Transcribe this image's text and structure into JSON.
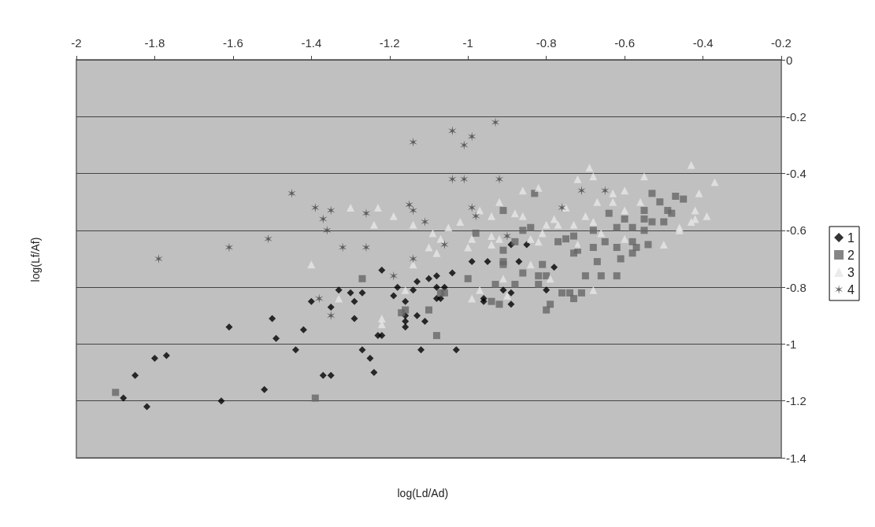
{
  "chart_data": {
    "type": "scatter",
    "xlabel": "log(Ld/Ad)",
    "ylabel": "log(Lf/Af)",
    "xlim": [
      -2,
      -0.2
    ],
    "ylim": [
      -1.4,
      0
    ],
    "xticks": [
      -2,
      -1.8,
      -1.6,
      -1.4,
      -1.2,
      -1,
      -0.8,
      -0.6,
      -0.4,
      -0.2
    ],
    "yticks": [
      0,
      -0.2,
      -0.4,
      -0.6,
      -0.8,
      -1,
      -1.2,
      -1.4
    ],
    "grid": "y",
    "legend": "right",
    "series": [
      {
        "name": "1",
        "color": "#000000",
        "marker": "diamond",
        "x": [
          -1.4,
          -1.5,
          -1.42,
          -1.49,
          -1.61,
          -1.44,
          -1.8,
          -1.77,
          -1.85,
          -1.88,
          -1.82,
          -1.63,
          -1.52,
          -1.37,
          -1.35,
          -1.22,
          -1.33,
          -1.3,
          -1.27,
          -1.29,
          -1.35,
          -1.29,
          -1.23,
          -1.22,
          -1.27,
          -1.25,
          -1.24,
          -1.12,
          -1.03,
          -1.18,
          -1.19,
          -1.16,
          -1.16,
          -1.16,
          -1.16,
          -1.13,
          -1.11,
          -1.14,
          -1.13,
          -1.1,
          -1.08,
          -1.04,
          -1.08,
          -1.06,
          -1.08,
          -1.07,
          -1.06,
          -0.99,
          -0.95,
          -0.87,
          -0.78,
          -0.96,
          -0.96,
          -0.91,
          -0.89,
          -0.89,
          -0.8,
          -0.89,
          -0.85
        ],
        "values": [
          -0.85,
          -0.91,
          -0.95,
          -0.98,
          -0.94,
          -1.02,
          -1.05,
          -1.04,
          -1.11,
          -1.19,
          -1.22,
          -1.2,
          -1.16,
          -1.11,
          -1.11,
          -0.74,
          -0.81,
          -0.82,
          -0.82,
          -0.85,
          -0.87,
          -0.91,
          -0.97,
          -0.97,
          -1.02,
          -1.05,
          -1.1,
          -1.02,
          -1.02,
          -0.8,
          -0.83,
          -0.85,
          -0.9,
          -0.92,
          -0.94,
          -0.9,
          -0.92,
          -0.81,
          -0.78,
          -0.77,
          -0.76,
          -0.75,
          -0.8,
          -0.8,
          -0.84,
          -0.84,
          null,
          -0.71,
          -0.71,
          -0.71,
          -0.73,
          -0.84,
          -0.85,
          -0.81,
          -0.82,
          -0.86,
          -0.81,
          -0.65,
          -0.65
        ]
      },
      {
        "name": "2",
        "color": "#666666",
        "marker": "square",
        "x": [
          -1.9,
          -1.39,
          -1.27,
          -1.1,
          -1.08,
          -1.17,
          -1.16,
          -1.0,
          -0.91,
          -0.86,
          -0.93,
          -0.88,
          -0.92,
          -0.94,
          -0.81,
          -0.82,
          -0.8,
          -0.82,
          -0.79,
          -0.8,
          -0.76,
          -1.07,
          -1.06,
          -0.83,
          -0.91,
          -0.98,
          -0.86,
          -0.84,
          -0.88,
          -0.91,
          -0.77,
          -0.91,
          -0.53,
          -0.51,
          -0.47,
          -0.45,
          -0.49,
          -0.48,
          -0.55,
          -0.55,
          -0.53,
          -0.55,
          -0.5,
          -0.64,
          -0.6,
          -0.62,
          -0.58,
          -0.68,
          -0.73,
          -0.75,
          -0.72,
          -0.73,
          -0.68,
          -0.65,
          -0.62,
          -0.58,
          -0.57,
          -0.54,
          -0.58,
          -0.67,
          -0.61,
          -0.7,
          -0.66,
          -0.62,
          -0.71,
          -0.74,
          -0.73
        ],
        "values": [
          -1.17,
          -1.19,
          -0.77,
          -0.88,
          -0.97,
          -0.89,
          -0.88,
          -0.77,
          -0.72,
          -0.75,
          -0.79,
          -0.79,
          -0.86,
          -0.85,
          -0.72,
          -0.76,
          -0.76,
          -0.79,
          -0.86,
          -0.88,
          -0.82,
          -0.82,
          -0.82,
          -0.47,
          -0.53,
          -0.61,
          -0.6,
          -0.59,
          -0.64,
          -0.67,
          -0.64,
          -0.71,
          -0.47,
          -0.5,
          -0.48,
          -0.49,
          -0.53,
          -0.54,
          -0.53,
          -0.56,
          -0.57,
          -0.6,
          -0.57,
          -0.54,
          -0.56,
          -0.59,
          -0.59,
          -0.6,
          -0.62,
          -0.63,
          -0.67,
          -0.68,
          -0.66,
          -0.64,
          -0.66,
          -0.64,
          -0.66,
          -0.65,
          -0.68,
          -0.71,
          -0.7,
          -0.76,
          -0.76,
          -0.76,
          -0.82,
          -0.82,
          -0.84
        ]
      },
      {
        "name": "3",
        "color": "#e6e6e6",
        "marker": "triangle",
        "x": [
          -0.86,
          -0.82,
          -0.92,
          -0.88,
          -0.86,
          -0.94,
          -0.97,
          -0.78,
          -0.8,
          -0.77,
          -1.02,
          -1.05,
          -1.14,
          -1.19,
          -1.23,
          -1.3,
          -1.24,
          -1.09,
          -1.07,
          -1.1,
          -1.08,
          -0.99,
          -1.0,
          -0.94,
          -0.94,
          -0.92,
          -0.84,
          -0.81,
          -0.82,
          -0.43,
          -0.37,
          -0.69,
          -0.68,
          -0.72,
          -0.55,
          -0.6,
          -0.63,
          -0.63,
          -0.67,
          -0.75,
          -0.56,
          -0.6,
          -0.41,
          -0.42,
          -0.39,
          -0.42,
          -0.43,
          -0.46,
          -0.46,
          -0.7,
          -0.68,
          -0.73,
          -0.66,
          -0.6,
          -0.5,
          -0.72,
          -1.4,
          -1.14,
          -1.33,
          -1.22,
          -1.22,
          -1.16,
          -0.97,
          -0.99,
          -0.9,
          -0.91,
          -0.84,
          -0.79,
          -0.68
        ],
        "values": [
          -0.46,
          -0.45,
          -0.5,
          -0.54,
          -0.55,
          -0.55,
          -0.53,
          -0.56,
          -0.58,
          -0.58,
          -0.57,
          -0.59,
          -0.58,
          -0.55,
          -0.52,
          -0.52,
          -0.58,
          -0.61,
          -0.63,
          -0.66,
          -0.68,
          -0.63,
          -0.66,
          -0.65,
          -0.62,
          -0.63,
          -0.63,
          -0.61,
          -0.64,
          -0.37,
          -0.43,
          -0.38,
          -0.41,
          -0.42,
          -0.41,
          -0.46,
          -0.47,
          -0.5,
          -0.5,
          -0.52,
          -0.5,
          -0.53,
          -0.47,
          -0.53,
          -0.55,
          -0.56,
          -0.57,
          -0.59,
          -0.6,
          -0.55,
          -0.57,
          -0.58,
          -0.61,
          -0.63,
          -0.65,
          -0.65,
          -0.72,
          -0.72,
          -0.84,
          -0.91,
          -0.93,
          -0.81,
          -0.81,
          -0.84,
          -0.83,
          -0.77,
          -0.72,
          -0.77,
          -0.81
        ]
      },
      {
        "name": "4",
        "color": "#444444",
        "marker": "cross",
        "x": [
          -1.79,
          -1.61,
          -1.51,
          -1.45,
          -1.39,
          -1.37,
          -1.36,
          -1.35,
          -1.32,
          -1.26,
          -1.26,
          -1.14,
          -1.04,
          -0.99,
          -1.01,
          -0.93,
          -1.04,
          -1.01,
          -0.92,
          -1.15,
          -1.14,
          -1.11,
          -0.99,
          -0.98,
          -0.9,
          -0.76,
          -1.06,
          -1.14,
          -1.19,
          -1.38,
          -1.35,
          -0.71,
          -0.65
        ],
        "values": [
          -0.7,
          -0.66,
          -0.63,
          -0.47,
          -0.52,
          -0.56,
          -0.6,
          -0.53,
          -0.66,
          -0.54,
          -0.66,
          -0.29,
          -0.25,
          -0.27,
          -0.3,
          -0.22,
          -0.42,
          -0.42,
          -0.42,
          -0.51,
          -0.53,
          -0.57,
          -0.52,
          -0.55,
          -0.62,
          -0.52,
          -0.65,
          -0.7,
          -0.76,
          -0.84,
          -0.9,
          -0.46,
          -0.46
        ]
      }
    ]
  }
}
